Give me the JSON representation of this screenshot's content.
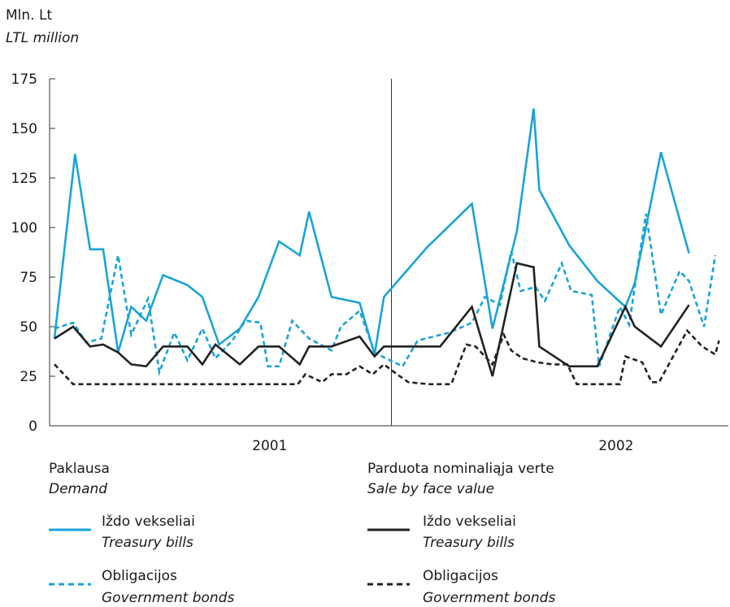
{
  "chart_data": {
    "type": "line",
    "unit_label": "Mln. Lt",
    "unit_label_en": "LTL million",
    "y_ticks": [
      0,
      25,
      50,
      75,
      100,
      125,
      150,
      175
    ],
    "ylim": [
      0,
      175
    ],
    "x_range": [
      0,
      36
    ],
    "year_labels": [
      {
        "label": "2001",
        "x": 11.5
      },
      {
        "label": "2002",
        "x": 30.0
      }
    ],
    "year_divider_x": 18,
    "grid": false,
    "legend": {
      "groups": [
        {
          "title": "Paklausa",
          "title_en": "Demand"
        },
        {
          "title": "Parduota nominaliąja verte",
          "title_en": "Sale by face value"
        }
      ]
    },
    "series": [
      {
        "name": "Iždo vekseliai",
        "name_en": "Treasury bills",
        "group": 0,
        "color": "#1aa3d9",
        "dash": "solid",
        "points": [
          [
            0,
            44
          ],
          [
            1.1,
            137
          ],
          [
            1.9,
            89
          ],
          [
            2.6,
            89
          ],
          [
            3.4,
            37
          ],
          [
            4.1,
            60
          ],
          [
            4.9,
            53
          ],
          [
            5.8,
            76
          ],
          [
            7.1,
            71
          ],
          [
            7.9,
            65
          ],
          [
            8.8,
            41
          ],
          [
            9.9,
            49
          ],
          [
            10.9,
            65
          ],
          [
            12.0,
            93
          ],
          [
            13.1,
            86
          ],
          [
            13.6,
            108
          ],
          [
            14.8,
            65
          ],
          [
            16.3,
            62
          ],
          [
            17.1,
            36
          ],
          [
            17.6,
            65
          ],
          [
            19.9,
            90
          ],
          [
            22.3,
            112
          ],
          [
            23.4,
            49
          ],
          [
            24.7,
            98
          ],
          [
            25.6,
            160
          ],
          [
            25.9,
            119
          ],
          [
            27.5,
            91
          ],
          [
            29.0,
            73
          ],
          [
            30.5,
            60
          ],
          [
            31.0,
            72
          ],
          [
            32.4,
            138
          ],
          [
            33.9,
            87
          ]
        ]
      },
      {
        "name": "Obligacijos",
        "name_en": "Government bonds",
        "group": 0,
        "color": "#1aa3d9",
        "dash": "dashed",
        "points": [
          [
            0,
            49
          ],
          [
            1.0,
            52
          ],
          [
            1.7,
            42
          ],
          [
            2.5,
            44
          ],
          [
            3.4,
            86
          ],
          [
            4.1,
            46
          ],
          [
            5.0,
            64
          ],
          [
            5.6,
            27
          ],
          [
            6.4,
            47
          ],
          [
            7.1,
            33
          ],
          [
            7.9,
            49
          ],
          [
            8.6,
            34
          ],
          [
            9.5,
            43
          ],
          [
            10.2,
            53
          ],
          [
            11.0,
            52
          ],
          [
            11.4,
            30
          ],
          [
            12.0,
            30
          ],
          [
            12.7,
            53
          ],
          [
            13.6,
            44
          ],
          [
            14.8,
            38
          ],
          [
            15.3,
            50
          ],
          [
            16.3,
            58
          ],
          [
            17.1,
            37
          ],
          [
            17.7,
            34
          ],
          [
            18.6,
            30
          ],
          [
            19.4,
            43
          ],
          [
            21.1,
            47
          ],
          [
            22.3,
            52
          ],
          [
            23.0,
            65
          ],
          [
            23.8,
            61
          ],
          [
            24.4,
            88
          ],
          [
            24.9,
            68
          ],
          [
            25.7,
            70
          ],
          [
            26.2,
            63
          ],
          [
            27.1,
            82
          ],
          [
            27.6,
            68
          ],
          [
            28.7,
            66
          ],
          [
            29.1,
            30
          ],
          [
            30.2,
            60
          ],
          [
            30.7,
            51
          ],
          [
            31.2,
            83
          ],
          [
            31.6,
            107
          ],
          [
            32.4,
            56
          ],
          [
            33.4,
            78
          ],
          [
            33.9,
            73
          ],
          [
            34.7,
            50
          ],
          [
            35.3,
            86
          ]
        ]
      },
      {
        "name": "Iždo vekseliai",
        "name_en": "Treasury bills",
        "group": 1,
        "color": "#222222",
        "dash": "solid",
        "points": [
          [
            0,
            44
          ],
          [
            1.0,
            50
          ],
          [
            1.9,
            40
          ],
          [
            2.6,
            41
          ],
          [
            3.4,
            37
          ],
          [
            4.1,
            31
          ],
          [
            4.9,
            30
          ],
          [
            5.8,
            40
          ],
          [
            7.1,
            40
          ],
          [
            7.9,
            31
          ],
          [
            8.6,
            41
          ],
          [
            9.9,
            31
          ],
          [
            10.9,
            40
          ],
          [
            12.0,
            40
          ],
          [
            13.1,
            31
          ],
          [
            13.6,
            40
          ],
          [
            14.8,
            40
          ],
          [
            16.3,
            45
          ],
          [
            17.1,
            35
          ],
          [
            17.6,
            40
          ],
          [
            18.8,
            40
          ],
          [
            20.6,
            40
          ],
          [
            22.3,
            60
          ],
          [
            23.4,
            25
          ],
          [
            24.7,
            82
          ],
          [
            25.6,
            80
          ],
          [
            25.9,
            40
          ],
          [
            27.5,
            30
          ],
          [
            29.0,
            30
          ],
          [
            30.5,
            60
          ],
          [
            31.0,
            50
          ],
          [
            32.4,
            40
          ],
          [
            33.9,
            61
          ]
        ]
      },
      {
        "name": "Obligacijos",
        "name_en": "Government bonds",
        "group": 1,
        "color": "#222222",
        "dash": "dashed",
        "points": [
          [
            0,
            31
          ],
          [
            1.0,
            21
          ],
          [
            2.0,
            21
          ],
          [
            3.0,
            21
          ],
          [
            4.0,
            21
          ],
          [
            5.0,
            21
          ],
          [
            6.0,
            21
          ],
          [
            7.0,
            21
          ],
          [
            8.0,
            21
          ],
          [
            9.0,
            21
          ],
          [
            10.0,
            21
          ],
          [
            11.0,
            21
          ],
          [
            12.0,
            21
          ],
          [
            13.0,
            21
          ],
          [
            13.4,
            26
          ],
          [
            14.3,
            22
          ],
          [
            14.8,
            26
          ],
          [
            15.6,
            26
          ],
          [
            16.3,
            30
          ],
          [
            17.0,
            26
          ],
          [
            17.6,
            31
          ],
          [
            18.3,
            26
          ],
          [
            18.9,
            22
          ],
          [
            20.0,
            21
          ],
          [
            21.2,
            21
          ],
          [
            22.0,
            41
          ],
          [
            22.5,
            40
          ],
          [
            23.4,
            31
          ],
          [
            24.0,
            46
          ],
          [
            24.4,
            38
          ],
          [
            25.0,
            34
          ],
          [
            25.8,
            32
          ],
          [
            26.6,
            31
          ],
          [
            27.4,
            31
          ],
          [
            27.9,
            21
          ],
          [
            30.2,
            21
          ],
          [
            30.5,
            35
          ],
          [
            31.4,
            32
          ],
          [
            31.9,
            22
          ],
          [
            32.3,
            22
          ],
          [
            33.8,
            48
          ],
          [
            34.6,
            40
          ],
          [
            35.3,
            36
          ],
          [
            35.5,
            43
          ]
        ]
      }
    ]
  }
}
